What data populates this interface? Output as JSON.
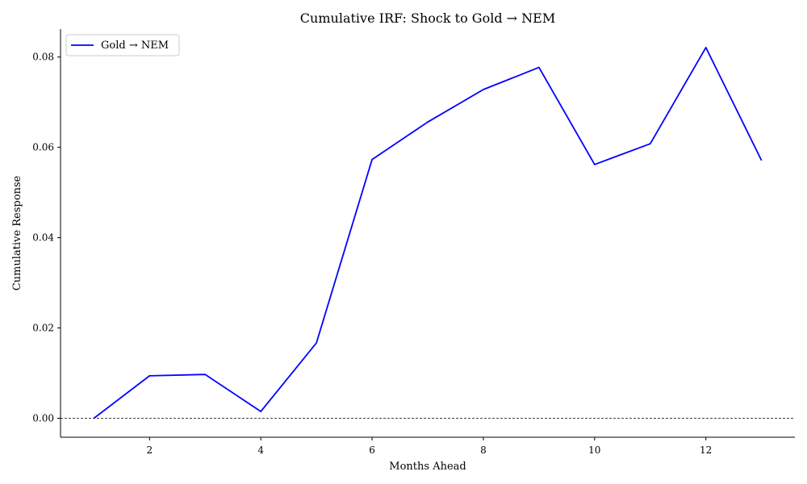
{
  "chart_data": {
    "type": "line",
    "title": "Cumulative IRF: Shock to Gold → NEM",
    "xlabel": "Months Ahead",
    "ylabel": "Cumulative Response",
    "xlim": [
      0.4,
      13.6
    ],
    "ylim": [
      -0.0042,
      0.0862
    ],
    "xticks": [
      2,
      4,
      6,
      8,
      10,
      12
    ],
    "xtick_labels": [
      "2",
      "4",
      "6",
      "8",
      "10",
      "12"
    ],
    "yticks": [
      0.0,
      0.02,
      0.04,
      0.06,
      0.08
    ],
    "ytick_labels": [
      "0.00",
      "0.02",
      "0.04",
      "0.06",
      "0.08"
    ],
    "grid": false,
    "legend_position": "top-left",
    "reference_line": {
      "y": 0.0,
      "style": "dashed",
      "color": "#000000"
    },
    "series": [
      {
        "name": "Gold → NEM",
        "color": "#0000ff",
        "x": [
          1,
          2,
          3,
          4,
          5,
          6,
          7,
          8,
          9,
          10,
          11,
          12,
          13
        ],
        "values": [
          0.0,
          0.0094,
          0.0097,
          0.0015,
          0.0167,
          0.0573,
          0.0656,
          0.0728,
          0.0777,
          0.0562,
          0.0608,
          0.0821,
          0.0571
        ]
      }
    ]
  }
}
